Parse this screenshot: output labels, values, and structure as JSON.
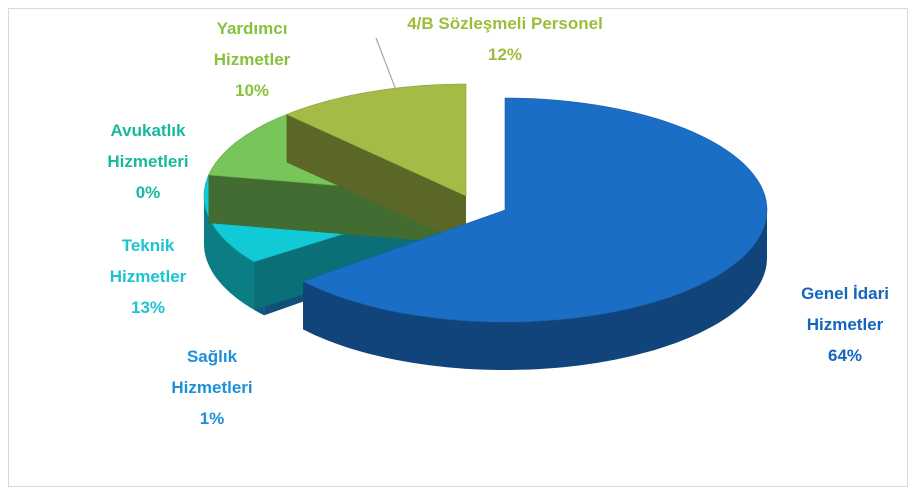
{
  "chart_data": {
    "type": "pie3d",
    "categories": [
      "Genel İdari Hizmetler",
      "Sağlık Hizmetleri",
      "Teknik Hizmetler",
      "Avukatlık Hizmetleri",
      "Yardımcı Hizmetler",
      "4/B Sözleşmeli Personel"
    ],
    "values": [
      64,
      1,
      13,
      0,
      10,
      12
    ],
    "value_labels": [
      "64%",
      "1%",
      "13%",
      "0%",
      "10%",
      "12%"
    ],
    "colors": [
      "#1a6ec6",
      "#1e8fd8",
      "#12cad6",
      "#22c29c",
      "#78c55a",
      "#a4bc45"
    ],
    "label_colors": [
      "#1565c0",
      "#1e8fd8",
      "#1cc3d3",
      "#19b99d",
      "#86c23c",
      "#9dbd3a"
    ]
  }
}
